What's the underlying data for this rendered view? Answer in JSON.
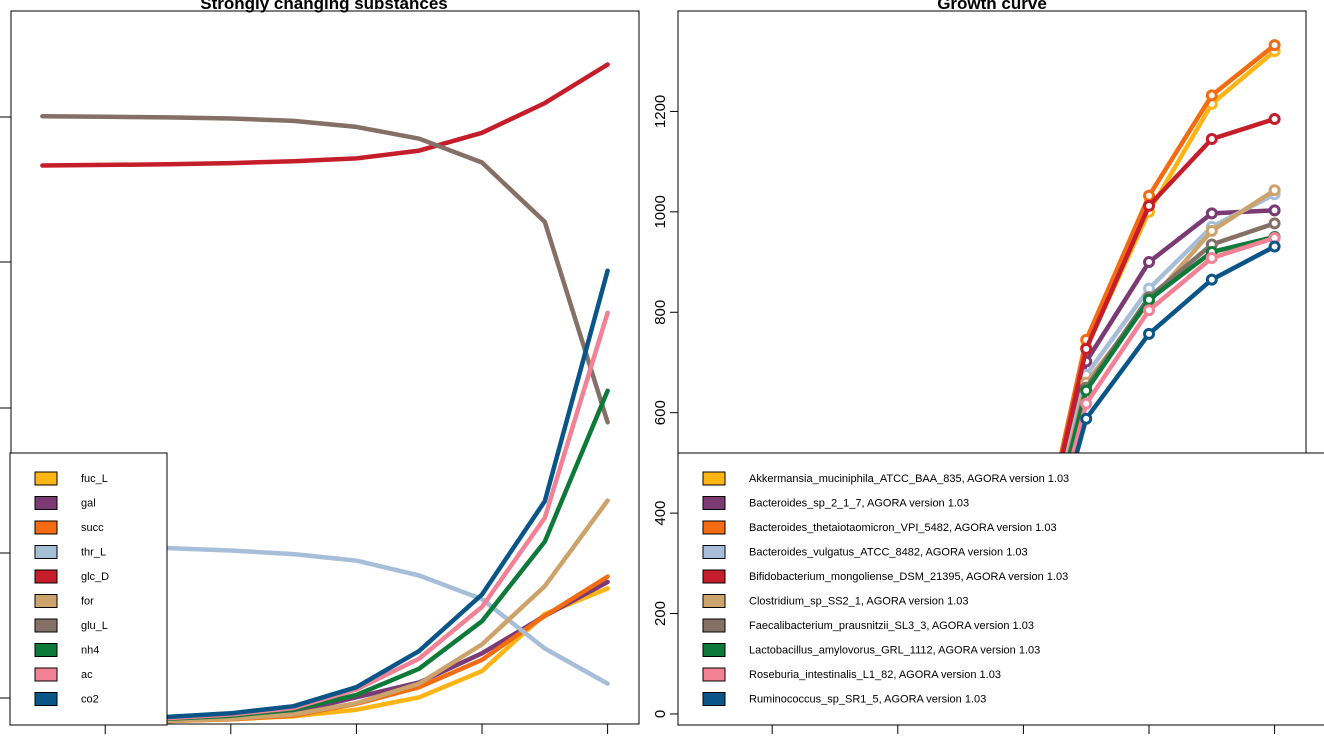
{
  "colors": {
    "fuc_L": "#FDB415",
    "gal": "#7B3A74",
    "succ": "#F46C12",
    "thr_L": "#A7BED8",
    "glc_D": "#C51E2A",
    "for": "#CCA36A",
    "glu_L": "#857068",
    "nh4": "#0E7A3A",
    "ac": "#F38195",
    "co2": "#0A5587"
  },
  "chart_data": [
    {
      "type": "line",
      "title": "Strongly changing substances",
      "xlabel": "",
      "ylabel": "",
      "xlim": [
        0.5,
        10.5
      ],
      "ylim": [
        0,
        1200
      ],
      "grid": false,
      "legend_position": "bottom-left",
      "x_ticks": [
        2,
        4,
        6,
        8,
        10
      ],
      "x": [
        1,
        2,
        3,
        4,
        5,
        6,
        7,
        8,
        9,
        10
      ],
      "series": [
        {
          "name": "fuc_L",
          "color_key": "fuc_L",
          "values": [
            2,
            3,
            5,
            8,
            13,
            24,
            45,
            89,
            185,
            228
          ]
        },
        {
          "name": "gal",
          "color_key": "gal",
          "values": [
            3,
            5,
            8,
            12,
            20,
            45,
            70,
            119,
            182,
            239
          ]
        },
        {
          "name": "succ",
          "color_key": "succ",
          "values": [
            2,
            3,
            5,
            8,
            14,
            34,
            62,
            108,
            182,
            248
          ]
        },
        {
          "name": "thr_L",
          "color_key": "thr_L",
          "values": [
            300,
            299,
            296,
            292,
            286,
            275,
            250,
            210,
            127,
            68
          ]
        },
        {
          "name": "glc_D",
          "color_key": "glc_D",
          "values": [
            940,
            941,
            942,
            944,
            947,
            952,
            965,
            995,
            1045,
            1110
          ]
        },
        {
          "name": "glu_L",
          "color_key": "glu_L",
          "values": [
            1023,
            1022,
            1021,
            1019,
            1015,
            1005,
            985,
            945,
            845,
            508
          ]
        },
        {
          "name": "for",
          "color_key": "for",
          "values": [
            2,
            3,
            5,
            9,
            16,
            35,
            68,
            134,
            232,
            376
          ]
        },
        {
          "name": "nh4",
          "color_key": "nh4",
          "values": [
            4,
            6,
            9,
            14,
            24,
            49,
            93,
            173,
            307,
            561
          ]
        },
        {
          "name": "ac",
          "color_key": "ac",
          "values": [
            4,
            7,
            10,
            16,
            27,
            58,
            110,
            197,
            347,
            692
          ]
        },
        {
          "name": "co2",
          "color_key": "co2",
          "values": [
            5,
            8,
            12,
            18,
            30,
            62,
            123,
            218,
            375,
            763
          ]
        }
      ],
      "legend": [
        {
          "label": "fuc_L",
          "color_key": "fuc_L"
        },
        {
          "label": "gal",
          "color_key": "gal"
        },
        {
          "label": "succ",
          "color_key": "succ"
        },
        {
          "label": "thr_L",
          "color_key": "thr_L"
        },
        {
          "label": "glc_D",
          "color_key": "glc_D"
        },
        {
          "label": "for",
          "color_key": "for"
        },
        {
          "label": "glu_L",
          "color_key": "glu_L"
        },
        {
          "label": "nh4",
          "color_key": "nh4"
        },
        {
          "label": "ac",
          "color_key": "ac"
        },
        {
          "label": "co2",
          "color_key": "co2"
        }
      ]
    },
    {
      "type": "line",
      "title": "Growth curve",
      "xlabel": "",
      "ylabel": "",
      "xlim": [
        0.5,
        10.5
      ],
      "ylim": [
        -20,
        1400
      ],
      "grid": false,
      "legend_position": "bottom-right",
      "x_ticks": [
        2,
        4,
        6,
        8,
        10
      ],
      "y_ticks": [
        0,
        200,
        400,
        600,
        800,
        1000,
        1200
      ],
      "x": [
        1,
        2,
        3,
        4,
        5,
        6,
        7,
        8,
        9,
        10
      ],
      "markers": true,
      "series": [
        {
          "name": "Akkermansia_muciniphila_ATCC_BAA_835, AGORA version 1.03",
          "color_key": "fuc_L",
          "values": [
            1,
            2,
            4,
            12,
            40,
            170,
            730,
            1000,
            1215,
            1320
          ]
        },
        {
          "name": "Bacteroides_sp_2_1_7, AGORA version 1.03",
          "color_key": "gal",
          "values": [
            1,
            2,
            4,
            11,
            38,
            160,
            702,
            900,
            997,
            1003
          ]
        },
        {
          "name": "Bacteroides_thetaiotaomicron_VPI_5482, AGORA version 1.03",
          "color_key": "succ",
          "values": [
            1,
            2,
            4,
            12,
            42,
            175,
            745,
            1032,
            1232,
            1332
          ]
        },
        {
          "name": "Bacteroides_vulgatus_ATCC_8482, AGORA version 1.03",
          "color_key": "thr_L",
          "values": [
            1,
            2,
            4,
            11,
            37,
            155,
            675,
            847,
            970,
            1035
          ]
        },
        {
          "name": "Bifidobacterium_mongoliense_DSM_21395, AGORA version 1.03",
          "color_key": "glc_D",
          "values": [
            1,
            2,
            4,
            12,
            41,
            172,
            727,
            1012,
            1145,
            1185
          ]
        },
        {
          "name": "Clostridium_sp_SS2_1, AGORA version 1.03",
          "color_key": "for",
          "values": [
            1,
            2,
            4,
            11,
            36,
            150,
            660,
            820,
            962,
            1043
          ]
        },
        {
          "name": "Faecalibacterium_prausnitzii_SL3_3, AGORA version 1.03",
          "color_key": "glu_L",
          "values": [
            1,
            2,
            4,
            10,
            35,
            148,
            650,
            830,
            935,
            977
          ]
        },
        {
          "name": "Lactobacillus_amylovorus_GRL_1112, AGORA version 1.03",
          "color_key": "nh4",
          "values": [
            1,
            2,
            4,
            10,
            34,
            145,
            644,
            825,
            920,
            950
          ]
        },
        {
          "name": "Roseburia_intestinalis_L1_82, AGORA version 1.03",
          "color_key": "ac",
          "values": [
            1,
            2,
            4,
            10,
            33,
            140,
            618,
            804,
            908,
            948
          ]
        },
        {
          "name": "Ruminococcus_sp_SR1_5, AGORA version 1.03",
          "color_key": "co2",
          "values": [
            1,
            2,
            4,
            9,
            30,
            132,
            588,
            757,
            865,
            931
          ]
        }
      ],
      "legend": [
        {
          "label": "Akkermansia_muciniphila_ATCC_BAA_835, AGORA version 1.03",
          "color_key": "fuc_L"
        },
        {
          "label": "Bacteroides_sp_2_1_7, AGORA version 1.03",
          "color_key": "gal"
        },
        {
          "label": "Bacteroides_thetaiotaomicron_VPI_5482, AGORA version 1.03",
          "color_key": "succ"
        },
        {
          "label": "Bacteroides_vulgatus_ATCC_8482, AGORA version 1.03",
          "color_key": "thr_L"
        },
        {
          "label": "Bifidobacterium_mongoliense_DSM_21395, AGORA version 1.03",
          "color_key": "glc_D"
        },
        {
          "label": "Clostridium_sp_SS2_1, AGORA version 1.03",
          "color_key": "for"
        },
        {
          "label": "Faecalibacterium_prausnitzii_SL3_3, AGORA version 1.03",
          "color_key": "glu_L"
        },
        {
          "label": "Lactobacillus_amylovorus_GRL_1112, AGORA version 1.03",
          "color_key": "nh4"
        },
        {
          "label": "Roseburia_intestinalis_L1_82, AGORA version 1.03",
          "color_key": "ac"
        },
        {
          "label": "Ruminococcus_sp_SR1_5, AGORA version 1.03",
          "color_key": "co2"
        }
      ]
    }
  ]
}
